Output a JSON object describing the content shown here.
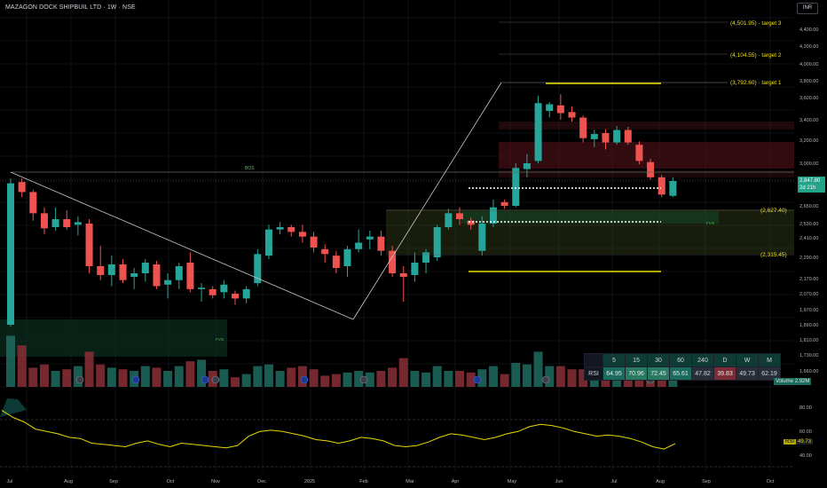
{
  "header": {
    "title": "MAZAGON DOCK SHIPBUIL LTD · 1W · NSE",
    "currency": "INR"
  },
  "colors": {
    "up": "#26a69a",
    "down": "#ef5350",
    "target": "#f0e000",
    "rsi": "#e6d900",
    "grid": "#1e222d"
  },
  "price_axis": {
    "ticks": [
      "4,400.00",
      "4,200.00",
      "4,000.00",
      "3,800.00",
      "3,600.00",
      "3,400.00",
      "3,200.00",
      "3,000.00",
      "2,847.80",
      "2,650.00",
      "2,530.00",
      "2,410.00",
      "2,290.00",
      "2,170.00",
      "2,070.00",
      "1,970.00",
      "1,890.00",
      "1,810.00",
      "1,730.00",
      "1,660.00"
    ],
    "current_price": "2,847.80",
    "countdown": "2d 21h",
    "volume_label": "Volume",
    "volume_value": "2.92M"
  },
  "time_axis": {
    "labels": [
      "Jul",
      "Aug",
      "Sep",
      "Oct",
      "Nov",
      "Dec",
      "2025",
      "Feb",
      "Mar",
      "Apr",
      "May",
      "Jun",
      "Jul",
      "Aug",
      "Sep",
      "Oct"
    ]
  },
  "annotations": {
    "target3": "(4,501.95) · target 3",
    "target2": "(4,104.55) · target 2",
    "target1": "(3,792.60) · target 1",
    "level_upper": "(2,627.40)",
    "level_lower": "(2,315.45)",
    "bos": "BOS",
    "fvg_right": "FVG",
    "fvg_left": "FVG",
    "earnings": "E",
    "dividend": "D"
  },
  "rsi_table": {
    "header_label": "RSI",
    "timeframes": [
      "5",
      "15",
      "30",
      "60",
      "240",
      "D",
      "W",
      "M"
    ],
    "values": [
      "64.95",
      "70.96",
      "72.45",
      "65.61",
      "47.82",
      "39.83",
      "49.73",
      "62.19"
    ]
  },
  "rsi_pane": {
    "label": "RSI",
    "value": "49.73",
    "ticks": [
      "80.00",
      "60.00",
      "40.00"
    ]
  },
  "chart_data": {
    "type": "candlestick",
    "title": "MAZAGON DOCK SHIPBUIL LTD · 1W · NSE",
    "ylim": [
      1660,
      4450
    ],
    "scale": "log-like price axis",
    "candles": [
      {
        "o": 1890,
        "h": 2870,
        "l": 1880,
        "c": 2830
      },
      {
        "o": 2840,
        "h": 2870,
        "l": 2720,
        "c": 2760
      },
      {
        "o": 2760,
        "h": 2780,
        "l": 2550,
        "c": 2600
      },
      {
        "o": 2600,
        "h": 2640,
        "l": 2440,
        "c": 2490
      },
      {
        "o": 2500,
        "h": 2640,
        "l": 2470,
        "c": 2560
      },
      {
        "o": 2560,
        "h": 2620,
        "l": 2480,
        "c": 2500
      },
      {
        "o": 2520,
        "h": 2580,
        "l": 2430,
        "c": 2540
      },
      {
        "o": 2530,
        "h": 2560,
        "l": 2200,
        "c": 2240
      },
      {
        "o": 2240,
        "h": 2360,
        "l": 2160,
        "c": 2190
      },
      {
        "o": 2190,
        "h": 2300,
        "l": 2120,
        "c": 2250
      },
      {
        "o": 2250,
        "h": 2280,
        "l": 2140,
        "c": 2160
      },
      {
        "o": 2180,
        "h": 2230,
        "l": 2100,
        "c": 2200
      },
      {
        "o": 2200,
        "h": 2280,
        "l": 2150,
        "c": 2260
      },
      {
        "o": 2250,
        "h": 2270,
        "l": 2100,
        "c": 2120
      },
      {
        "o": 2130,
        "h": 2200,
        "l": 2040,
        "c": 2160
      },
      {
        "o": 2160,
        "h": 2260,
        "l": 2100,
        "c": 2240
      },
      {
        "o": 2260,
        "h": 2320,
        "l": 2080,
        "c": 2100
      },
      {
        "o": 2100,
        "h": 2140,
        "l": 2020,
        "c": 2110
      },
      {
        "o": 2100,
        "h": 2120,
        "l": 2040,
        "c": 2060
      },
      {
        "o": 2080,
        "h": 2160,
        "l": 2040,
        "c": 2130
      },
      {
        "o": 2070,
        "h": 2090,
        "l": 2000,
        "c": 2040
      },
      {
        "o": 2040,
        "h": 2120,
        "l": 2010,
        "c": 2100
      },
      {
        "o": 2140,
        "h": 2340,
        "l": 2120,
        "c": 2310
      },
      {
        "o": 2300,
        "h": 2520,
        "l": 2280,
        "c": 2480
      },
      {
        "o": 2480,
        "h": 2540,
        "l": 2440,
        "c": 2500
      },
      {
        "o": 2500,
        "h": 2520,
        "l": 2420,
        "c": 2460
      },
      {
        "o": 2460,
        "h": 2520,
        "l": 2380,
        "c": 2420
      },
      {
        "o": 2420,
        "h": 2460,
        "l": 2320,
        "c": 2350
      },
      {
        "o": 2340,
        "h": 2370,
        "l": 2260,
        "c": 2310
      },
      {
        "o": 2300,
        "h": 2330,
        "l": 2200,
        "c": 2230
      },
      {
        "o": 2240,
        "h": 2360,
        "l": 2180,
        "c": 2340
      },
      {
        "o": 2340,
        "h": 2480,
        "l": 2320,
        "c": 2380
      },
      {
        "o": 2400,
        "h": 2470,
        "l": 2340,
        "c": 2420
      },
      {
        "o": 2420,
        "h": 2470,
        "l": 2300,
        "c": 2330
      },
      {
        "o": 2330,
        "h": 2360,
        "l": 2180,
        "c": 2200
      },
      {
        "o": 2200,
        "h": 2240,
        "l": 2020,
        "c": 2180
      },
      {
        "o": 2190,
        "h": 2320,
        "l": 2150,
        "c": 2260
      },
      {
        "o": 2260,
        "h": 2340,
        "l": 2200,
        "c": 2320
      },
      {
        "o": 2290,
        "h": 2520,
        "l": 2270,
        "c": 2500
      },
      {
        "o": 2500,
        "h": 2630,
        "l": 2480,
        "c": 2600
      },
      {
        "o": 2600,
        "h": 2640,
        "l": 2520,
        "c": 2560
      },
      {
        "o": 2550,
        "h": 2570,
        "l": 2480,
        "c": 2520
      },
      {
        "o": 2330,
        "h": 2580,
        "l": 2300,
        "c": 2530
      },
      {
        "o": 2530,
        "h": 2700,
        "l": 2500,
        "c": 2640
      },
      {
        "o": 2680,
        "h": 2700,
        "l": 2630,
        "c": 2650
      },
      {
        "o": 2650,
        "h": 3000,
        "l": 2640,
        "c": 2960
      },
      {
        "o": 2950,
        "h": 3080,
        "l": 2880,
        "c": 3000
      },
      {
        "o": 3020,
        "h": 3620,
        "l": 3000,
        "c": 3550
      },
      {
        "o": 3480,
        "h": 3560,
        "l": 3420,
        "c": 3540
      },
      {
        "o": 3530,
        "h": 3640,
        "l": 3400,
        "c": 3460
      },
      {
        "o": 3470,
        "h": 3520,
        "l": 3380,
        "c": 3420
      },
      {
        "o": 3420,
        "h": 3440,
        "l": 3180,
        "c": 3220
      },
      {
        "o": 3210,
        "h": 3300,
        "l": 3140,
        "c": 3260
      },
      {
        "o": 3270,
        "h": 3310,
        "l": 3120,
        "c": 3180
      },
      {
        "o": 3180,
        "h": 3340,
        "l": 3160,
        "c": 3300
      },
      {
        "o": 3300,
        "h": 3330,
        "l": 3160,
        "c": 3180
      },
      {
        "o": 3160,
        "h": 3190,
        "l": 2990,
        "c": 3020
      },
      {
        "o": 3010,
        "h": 3040,
        "l": 2860,
        "c": 2880
      },
      {
        "o": 2880,
        "h": 2900,
        "l": 2720,
        "c": 2740
      },
      {
        "o": 2730,
        "h": 2880,
        "l": 2720,
        "c": 2848
      }
    ],
    "levels": {
      "target3": 4501.95,
      "target2": 4104.55,
      "target1": 3792.6,
      "upper": 2627.4,
      "lower": 2315.45
    },
    "rsi": {
      "overbought": 70,
      "oversold": 30,
      "last": 49.73
    }
  }
}
